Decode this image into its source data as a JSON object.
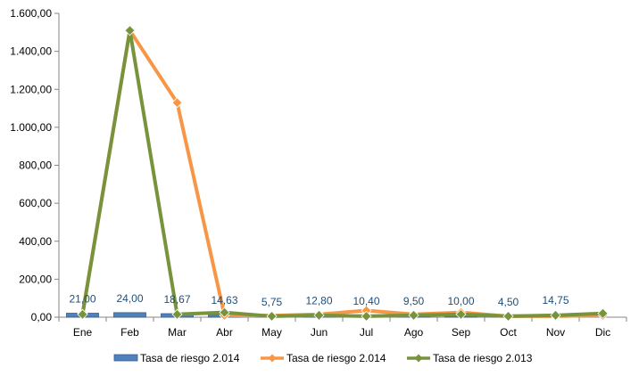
{
  "chart_data": {
    "type": "bar",
    "categories": [
      "Ene",
      "Feb",
      "Mar",
      "Abr",
      "May",
      "Jun",
      "Jul",
      "Ago",
      "Sep",
      "Oct",
      "Nov",
      "Dic"
    ],
    "yticks": [
      "0,00",
      "200,00",
      "400,00",
      "600,00",
      "800,00",
      "1.000,00",
      "1.200,00",
      "1.400,00",
      "1.600,00"
    ],
    "ylim": [
      0,
      1600
    ],
    "grid": false,
    "legend_position": "bottom",
    "series": [
      {
        "name": "Tasa de riesgo 2.014",
        "type": "bar",
        "color": "#4f81bd",
        "values": [
          21.0,
          24.0,
          18.67,
          14.63,
          5.75,
          12.8,
          10.4,
          9.5,
          10.0,
          4.5,
          14.75,
          null
        ],
        "data_labels": [
          "21,00",
          "24,00",
          "18,67",
          "14,63",
          "5,75",
          "12,80",
          "10,40",
          "9,50",
          "10,00",
          "4,50",
          "14,75",
          ""
        ]
      },
      {
        "name": "Tasa de riesgo 2.014",
        "type": "line",
        "color": "#f79646",
        "values": [
          20,
          1510,
          1130,
          10,
          8,
          15,
          35,
          15,
          25,
          5,
          5,
          10
        ]
      },
      {
        "name": "Tasa de riesgo 2.013",
        "type": "line",
        "color": "#77933c",
        "values": [
          15,
          1510,
          15,
          25,
          5,
          10,
          5,
          10,
          15,
          5,
          10,
          20
        ]
      }
    ]
  }
}
